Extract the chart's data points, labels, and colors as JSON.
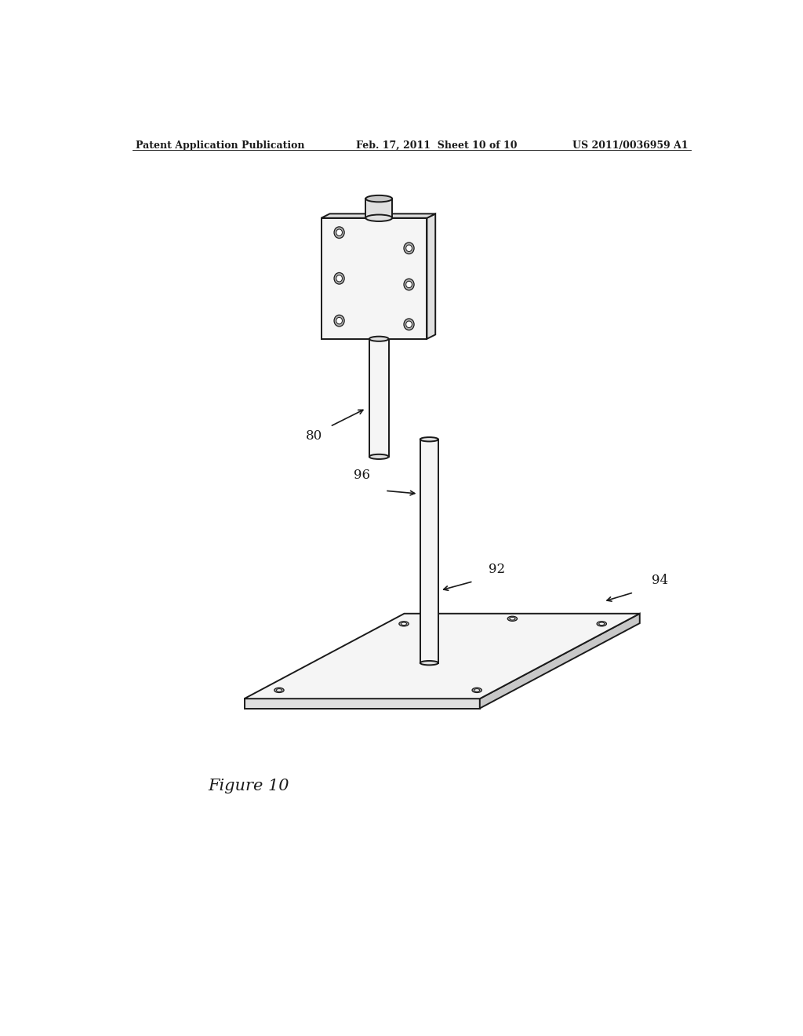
{
  "background_color": "#ffffff",
  "header_left": "Patent Application Publication",
  "header_center": "Feb. 17, 2011  Sheet 10 of 10",
  "header_right": "US 2011/0036959 A1",
  "figure_label": "Figure 10",
  "label_80": "80",
  "label_92": "92",
  "label_94": "94",
  "label_96": "96",
  "line_color": "#1a1a1a",
  "face_light": "#f5f5f5",
  "face_mid": "#e0e0e0",
  "face_dark": "#c8c8c8",
  "line_width": 1.4
}
